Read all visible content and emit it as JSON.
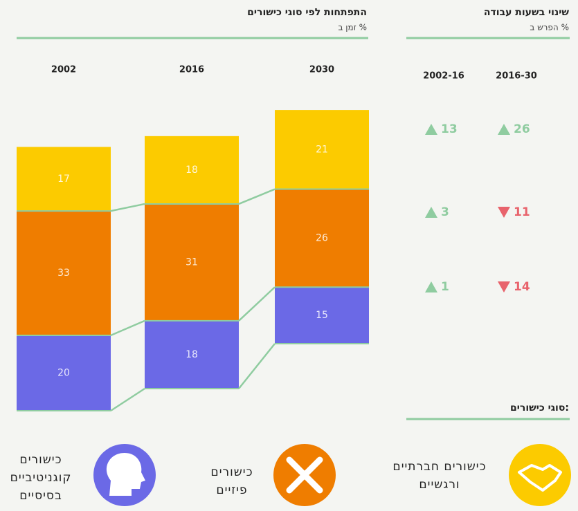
{
  "chart_data": {
    "type": "stacked_bar",
    "title": "התפתחות לפי סוגי כישורים",
    "subtitle": "זמן ב %",
    "categories": [
      "2002",
      "2016",
      "2030"
    ],
    "series": [
      {
        "name": "כישורים קוגניטיביים בסיסיים",
        "color": "#6b69e6",
        "values": [
          20,
          18,
          15
        ]
      },
      {
        "name": "כישורים פיזיים",
        "color": "#ef7d00",
        "values": [
          33,
          31,
          26
        ]
      },
      {
        "name": "כישורים חברתיים ורגשיים",
        "color": "#fccb00",
        "values": [
          17,
          18,
          21
        ]
      }
    ]
  },
  "change_table": {
    "title": "שינוי בשעות עבודה",
    "subtitle": "הפרש ב %",
    "columns": [
      {
        "label": "2016-30",
        "values": [
          {
            "value": 26,
            "dir": "up"
          },
          {
            "value": 11,
            "dir": "down"
          },
          {
            "value": 14,
            "dir": "down"
          }
        ]
      },
      {
        "label": "2002-16",
        "values": [
          {
            "value": 13,
            "dir": "up"
          },
          {
            "value": 3,
            "dir": "up"
          },
          {
            "value": 1,
            "dir": "up"
          }
        ]
      }
    ]
  },
  "legend": {
    "title": "סוגי כישורים:"
  }
}
